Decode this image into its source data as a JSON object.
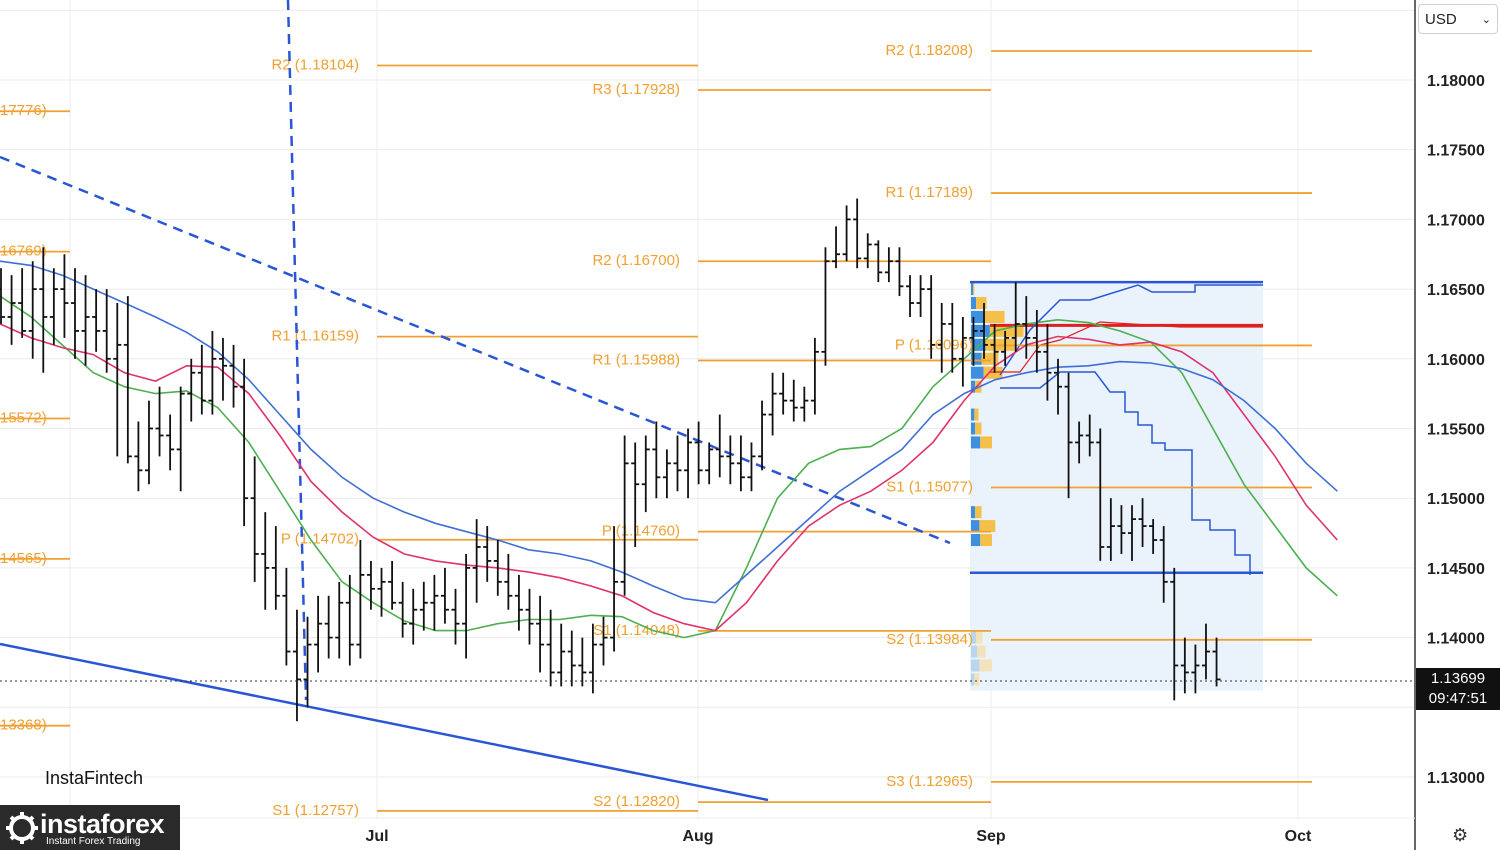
{
  "chart_data": {
    "type": "bar",
    "instrument_currency": "USD",
    "x_ticks": [
      "Jul",
      "Aug",
      "Sep",
      "Oct"
    ],
    "y_ticks": [
      "1.18000",
      "1.17500",
      "1.17000",
      "1.16500",
      "1.16000",
      "1.15500",
      "1.15000",
      "1.14500",
      "1.14000",
      "1.13000"
    ],
    "ylim": [
      1.1245,
      1.1858
    ],
    "current_price": "1.13699",
    "countdown": "09:47:51",
    "pivot_levels": [
      {
        "label": "R2 (1.18104)",
        "value": 1.18104,
        "period": "Jul"
      },
      {
        "label": "R1 (1.16159)",
        "value": 1.16159,
        "period": "Jul"
      },
      {
        "label": "P (1.14702)",
        "value": 1.14702,
        "period": "Jul"
      },
      {
        "label": "S1 (1.12757)",
        "value": 1.12757,
        "period": "Jul"
      },
      {
        "label": "R3 (1.17928)",
        "value": 1.17928,
        "period": "Aug"
      },
      {
        "label": "R2 (1.16700)",
        "value": 1.167,
        "period": "Aug"
      },
      {
        "label": "R1 (1.15988)",
        "value": 1.15988,
        "period": "Aug"
      },
      {
        "label": "P (1.14760)",
        "value": 1.1476,
        "period": "Aug"
      },
      {
        "label": "S1 (1.14048)",
        "value": 1.14048,
        "period": "Aug"
      },
      {
        "label": "S2 (1.12820)",
        "value": 1.1282,
        "period": "Aug"
      },
      {
        "label": "R2 (1.18208)",
        "value": 1.18208,
        "period": "Sep"
      },
      {
        "label": "R1 (1.17189)",
        "value": 1.17189,
        "period": "Sep"
      },
      {
        "label": "P (1.16096)",
        "value": 1.16096,
        "period": "Sep"
      },
      {
        "label": "S1 (1.15077)",
        "value": 1.15077,
        "period": "Sep"
      },
      {
        "label": "S2 (1.13984)",
        "value": 1.13984,
        "period": "Sep"
      },
      {
        "label": "S3 (1.12965)",
        "value": 1.12965,
        "period": "Sep"
      },
      {
        "label": "17776)",
        "value": 1.17776,
        "period": "Jun"
      },
      {
        "label": "16769)",
        "value": 1.16769,
        "period": "Jun"
      },
      {
        "label": "15572)",
        "value": 1.15572,
        "period": "Jun"
      },
      {
        "label": "14565)",
        "value": 1.14565,
        "period": "Jun"
      },
      {
        "label": "13368)",
        "value": 1.13368,
        "period": "Jun"
      }
    ],
    "ohlc": [
      {
        "o": 1.165,
        "h": 1.1665,
        "l": 1.1625,
        "c": 1.163
      },
      {
        "o": 1.163,
        "h": 1.166,
        "l": 1.161,
        "c": 1.164
      },
      {
        "o": 1.164,
        "h": 1.1665,
        "l": 1.1615,
        "c": 1.162
      },
      {
        "o": 1.162,
        "h": 1.167,
        "l": 1.16,
        "c": 1.165
      },
      {
        "o": 1.165,
        "h": 1.168,
        "l": 1.159,
        "c": 1.163
      },
      {
        "o": 1.163,
        "h": 1.1665,
        "l": 1.161,
        "c": 1.165
      },
      {
        "o": 1.165,
        "h": 1.1675,
        "l": 1.1615,
        "c": 1.164
      },
      {
        "o": 1.164,
        "h": 1.1665,
        "l": 1.16,
        "c": 1.162
      },
      {
        "o": 1.162,
        "h": 1.166,
        "l": 1.1595,
        "c": 1.163
      },
      {
        "o": 1.163,
        "h": 1.165,
        "l": 1.1605,
        "c": 1.162
      },
      {
        "o": 1.162,
        "h": 1.165,
        "l": 1.159,
        "c": 1.16
      },
      {
        "o": 1.16,
        "h": 1.164,
        "l": 1.153,
        "c": 1.161
      },
      {
        "o": 1.161,
        "h": 1.1645,
        "l": 1.1525,
        "c": 1.153
      },
      {
        "o": 1.153,
        "h": 1.1555,
        "l": 1.1505,
        "c": 1.152
      },
      {
        "o": 1.152,
        "h": 1.157,
        "l": 1.151,
        "c": 1.155
      },
      {
        "o": 1.155,
        "h": 1.158,
        "l": 1.153,
        "c": 1.1545
      },
      {
        "o": 1.1545,
        "h": 1.156,
        "l": 1.152,
        "c": 1.1535
      },
      {
        "o": 1.1535,
        "h": 1.158,
        "l": 1.1505,
        "c": 1.1575
      },
      {
        "o": 1.1575,
        "h": 1.16,
        "l": 1.1555,
        "c": 1.159
      },
      {
        "o": 1.159,
        "h": 1.161,
        "l": 1.156,
        "c": 1.157
      },
      {
        "o": 1.157,
        "h": 1.162,
        "l": 1.156,
        "c": 1.16
      },
      {
        "o": 1.16,
        "h": 1.1615,
        "l": 1.157,
        "c": 1.1595
      },
      {
        "o": 1.1595,
        "h": 1.161,
        "l": 1.1565,
        "c": 1.158
      },
      {
        "o": 1.158,
        "h": 1.16,
        "l": 1.148,
        "c": 1.15
      },
      {
        "o": 1.15,
        "h": 1.153,
        "l": 1.144,
        "c": 1.146
      },
      {
        "o": 1.146,
        "h": 1.149,
        "l": 1.142,
        "c": 1.145
      },
      {
        "o": 1.145,
        "h": 1.148,
        "l": 1.142,
        "c": 1.143
      },
      {
        "o": 1.143,
        "h": 1.145,
        "l": 1.138,
        "c": 1.139
      },
      {
        "o": 1.139,
        "h": 1.142,
        "l": 1.134,
        "c": 1.137
      },
      {
        "o": 1.137,
        "h": 1.1415,
        "l": 1.135,
        "c": 1.1395
      },
      {
        "o": 1.1395,
        "h": 1.143,
        "l": 1.1375,
        "c": 1.141
      },
      {
        "o": 1.141,
        "h": 1.143,
        "l": 1.1385,
        "c": 1.14
      },
      {
        "o": 1.14,
        "h": 1.144,
        "l": 1.1385,
        "c": 1.1425
      },
      {
        "o": 1.1425,
        "h": 1.1445,
        "l": 1.138,
        "c": 1.1395
      },
      {
        "o": 1.1395,
        "h": 1.147,
        "l": 1.1385,
        "c": 1.1445
      },
      {
        "o": 1.1445,
        "h": 1.1455,
        "l": 1.142,
        "c": 1.1435
      },
      {
        "o": 1.1435,
        "h": 1.145,
        "l": 1.1415,
        "c": 1.144
      },
      {
        "o": 1.144,
        "h": 1.1455,
        "l": 1.142,
        "c": 1.1425
      },
      {
        "o": 1.1425,
        "h": 1.144,
        "l": 1.14,
        "c": 1.141
      },
      {
        "o": 1.141,
        "h": 1.1435,
        "l": 1.1395,
        "c": 1.142
      },
      {
        "o": 1.142,
        "h": 1.144,
        "l": 1.1405,
        "c": 1.1425
      },
      {
        "o": 1.1425,
        "h": 1.1445,
        "l": 1.1405,
        "c": 1.143
      },
      {
        "o": 1.143,
        "h": 1.145,
        "l": 1.141,
        "c": 1.142
      },
      {
        "o": 1.142,
        "h": 1.1435,
        "l": 1.1395,
        "c": 1.141
      },
      {
        "o": 1.141,
        "h": 1.146,
        "l": 1.1385,
        "c": 1.145
      },
      {
        "o": 1.145,
        "h": 1.1485,
        "l": 1.1425,
        "c": 1.1465
      },
      {
        "o": 1.1465,
        "h": 1.148,
        "l": 1.144,
        "c": 1.1455
      },
      {
        "o": 1.1455,
        "h": 1.147,
        "l": 1.143,
        "c": 1.144
      },
      {
        "o": 1.144,
        "h": 1.146,
        "l": 1.142,
        "c": 1.143
      },
      {
        "o": 1.143,
        "h": 1.1445,
        "l": 1.1405,
        "c": 1.142
      },
      {
        "o": 1.142,
        "h": 1.1435,
        "l": 1.1395,
        "c": 1.141
      },
      {
        "o": 1.141,
        "h": 1.143,
        "l": 1.1375,
        "c": 1.1395
      },
      {
        "o": 1.1395,
        "h": 1.142,
        "l": 1.1365,
        "c": 1.1375
      },
      {
        "o": 1.1375,
        "h": 1.141,
        "l": 1.1365,
        "c": 1.139
      },
      {
        "o": 1.139,
        "h": 1.1405,
        "l": 1.1365,
        "c": 1.138
      },
      {
        "o": 1.138,
        "h": 1.14,
        "l": 1.1365,
        "c": 1.1375
      },
      {
        "o": 1.1375,
        "h": 1.141,
        "l": 1.136,
        "c": 1.1395
      },
      {
        "o": 1.1395,
        "h": 1.1415,
        "l": 1.138,
        "c": 1.14
      },
      {
        "o": 1.14,
        "h": 1.148,
        "l": 1.139,
        "c": 1.144
      },
      {
        "o": 1.144,
        "h": 1.1545,
        "l": 1.143,
        "c": 1.1525
      },
      {
        "o": 1.1525,
        "h": 1.154,
        "l": 1.1465,
        "c": 1.151
      },
      {
        "o": 1.151,
        "h": 1.1545,
        "l": 1.149,
        "c": 1.1535
      },
      {
        "o": 1.1535,
        "h": 1.1555,
        "l": 1.15,
        "c": 1.1515
      },
      {
        "o": 1.1515,
        "h": 1.1535,
        "l": 1.15,
        "c": 1.1525
      },
      {
        "o": 1.1525,
        "h": 1.1545,
        "l": 1.1505,
        "c": 1.152
      },
      {
        "o": 1.152,
        "h": 1.155,
        "l": 1.15,
        "c": 1.154
      },
      {
        "o": 1.154,
        "h": 1.1555,
        "l": 1.151,
        "c": 1.152
      },
      {
        "o": 1.152,
        "h": 1.154,
        "l": 1.151,
        "c": 1.1535
      },
      {
        "o": 1.1535,
        "h": 1.156,
        "l": 1.1515,
        "c": 1.153
      },
      {
        "o": 1.153,
        "h": 1.1545,
        "l": 1.151,
        "c": 1.1525
      },
      {
        "o": 1.1525,
        "h": 1.1545,
        "l": 1.1505,
        "c": 1.1515
      },
      {
        "o": 1.1515,
        "h": 1.154,
        "l": 1.1505,
        "c": 1.153
      },
      {
        "o": 1.153,
        "h": 1.157,
        "l": 1.152,
        "c": 1.156
      },
      {
        "o": 1.156,
        "h": 1.159,
        "l": 1.1545,
        "c": 1.1575
      },
      {
        "o": 1.1575,
        "h": 1.159,
        "l": 1.156,
        "c": 1.157
      },
      {
        "o": 1.157,
        "h": 1.1585,
        "l": 1.1555,
        "c": 1.1565
      },
      {
        "o": 1.1565,
        "h": 1.158,
        "l": 1.1555,
        "c": 1.157
      },
      {
        "o": 1.157,
        "h": 1.1615,
        "l": 1.156,
        "c": 1.1605
      },
      {
        "o": 1.1605,
        "h": 1.168,
        "l": 1.1595,
        "c": 1.167
      },
      {
        "o": 1.167,
        "h": 1.1695,
        "l": 1.1665,
        "c": 1.1675
      },
      {
        "o": 1.1675,
        "h": 1.171,
        "l": 1.167,
        "c": 1.17
      },
      {
        "o": 1.17,
        "h": 1.1715,
        "l": 1.1665,
        "c": 1.1672
      },
      {
        "o": 1.1672,
        "h": 1.169,
        "l": 1.1665,
        "c": 1.1682
      },
      {
        "o": 1.1682,
        "h": 1.1685,
        "l": 1.1655,
        "c": 1.1662
      },
      {
        "o": 1.1662,
        "h": 1.168,
        "l": 1.1655,
        "c": 1.167
      },
      {
        "o": 1.167,
        "h": 1.168,
        "l": 1.1645,
        "c": 1.1652
      },
      {
        "o": 1.1652,
        "h": 1.166,
        "l": 1.163,
        "c": 1.164
      },
      {
        "o": 1.164,
        "h": 1.166,
        "l": 1.163,
        "c": 1.165
      },
      {
        "o": 1.165,
        "h": 1.166,
        "l": 1.16,
        "c": 1.161
      },
      {
        "o": 1.161,
        "h": 1.164,
        "l": 1.159,
        "c": 1.1625
      },
      {
        "o": 1.1625,
        "h": 1.164,
        "l": 1.159,
        "c": 1.16
      },
      {
        "o": 1.16,
        "h": 1.163,
        "l": 1.158,
        "c": 1.1615
      },
      {
        "o": 1.1615,
        "h": 1.163,
        "l": 1.1595,
        "c": 1.162
      },
      {
        "o": 1.162,
        "h": 1.164,
        "l": 1.16,
        "c": 1.161
      },
      {
        "o": 1.161,
        "h": 1.1625,
        "l": 1.159,
        "c": 1.1605
      },
      {
        "o": 1.1605,
        "h": 1.162,
        "l": 1.1595,
        "c": 1.1615
      },
      {
        "o": 1.1615,
        "h": 1.1655,
        "l": 1.1605,
        "c": 1.1625
      },
      {
        "o": 1.1625,
        "h": 1.1645,
        "l": 1.16,
        "c": 1.1615
      },
      {
        "o": 1.1615,
        "h": 1.1635,
        "l": 1.159,
        "c": 1.1605
      },
      {
        "o": 1.1605,
        "h": 1.1625,
        "l": 1.157,
        "c": 1.159
      },
      {
        "o": 1.159,
        "h": 1.16,
        "l": 1.156,
        "c": 1.158
      },
      {
        "o": 1.158,
        "h": 1.159,
        "l": 1.15,
        "c": 1.154
      },
      {
        "o": 1.154,
        "h": 1.1555,
        "l": 1.1525,
        "c": 1.1545
      },
      {
        "o": 1.1545,
        "h": 1.156,
        "l": 1.153,
        "c": 1.154
      },
      {
        "o": 1.154,
        "h": 1.155,
        "l": 1.1455,
        "c": 1.1465
      },
      {
        "o": 1.1465,
        "h": 1.15,
        "l": 1.1455,
        "c": 1.148
      },
      {
        "o": 1.148,
        "h": 1.1495,
        "l": 1.146,
        "c": 1.1475
      },
      {
        "o": 1.1475,
        "h": 1.1495,
        "l": 1.1455,
        "c": 1.1485
      },
      {
        "o": 1.1485,
        "h": 1.15,
        "l": 1.1465,
        "c": 1.148
      },
      {
        "o": 1.148,
        "h": 1.1485,
        "l": 1.146,
        "c": 1.147
      },
      {
        "o": 1.147,
        "h": 1.148,
        "l": 1.1425,
        "c": 1.144
      },
      {
        "o": 1.144,
        "h": 1.145,
        "l": 1.1355,
        "c": 1.138
      },
      {
        "o": 1.138,
        "h": 1.14,
        "l": 1.136,
        "c": 1.1375
      },
      {
        "o": 1.1375,
        "h": 1.1395,
        "l": 1.136,
        "c": 1.138
      },
      {
        "o": 1.138,
        "h": 1.141,
        "l": 1.137,
        "c": 1.139
      },
      {
        "o": 1.139,
        "h": 1.14,
        "l": 1.1365,
        "c": 1.137
      }
    ],
    "moving_averages": [
      {
        "color": "#4CAF50",
        "values": [
          1.1645,
          1.163,
          1.161,
          1.159,
          1.158,
          1.1575,
          1.1577,
          1.1565,
          1.154,
          1.1505,
          1.147,
          1.144,
          1.1425,
          1.1412,
          1.1405,
          1.1405,
          1.141,
          1.1413,
          1.1413,
          1.1416,
          1.1415,
          1.1405,
          1.14,
          1.1405,
          1.145,
          1.15,
          1.1525,
          1.1535,
          1.1537,
          1.155,
          1.158,
          1.16,
          1.162,
          1.1625,
          1.1628,
          1.1626,
          1.162,
          1.1612,
          1.159,
          1.155,
          1.151,
          1.148,
          1.145,
          1.143
        ]
      },
      {
        "color": "#E0336B",
        "values": [
          1.1625,
          1.1615,
          1.1608,
          1.1603,
          1.159,
          1.1584,
          1.1595,
          1.1594,
          1.1575,
          1.1545,
          1.1512,
          1.149,
          1.1472,
          1.146,
          1.1455,
          1.1452,
          1.145,
          1.1447,
          1.1443,
          1.1437,
          1.143,
          1.1418,
          1.141,
          1.1405,
          1.1425,
          1.1455,
          1.148,
          1.1495,
          1.1505,
          1.152,
          1.154,
          1.157,
          1.1595,
          1.161,
          1.1616,
          1.1614,
          1.161,
          1.1612,
          1.1605,
          1.159,
          1.156,
          1.153,
          1.1495,
          1.147
        ]
      },
      {
        "color": "#3F6FD6",
        "values": [
          1.167,
          1.1667,
          1.166,
          1.165,
          1.164,
          1.163,
          1.1619,
          1.1605,
          1.1585,
          1.156,
          1.1535,
          1.1515,
          1.15,
          1.149,
          1.1482,
          1.1476,
          1.147,
          1.1463,
          1.146,
          1.1455,
          1.1447,
          1.1437,
          1.1428,
          1.1425,
          1.1445,
          1.1465,
          1.1485,
          1.1505,
          1.152,
          1.1535,
          1.156,
          1.1575,
          1.1585,
          1.159,
          1.1594,
          1.1595,
          1.1598,
          1.1597,
          1.1593,
          1.1585,
          1.157,
          1.155,
          1.1525,
          1.1505
        ]
      }
    ],
    "volume_profile": {
      "range_high": 1.1655,
      "range_low": 1.1362,
      "bins": [
        {
          "price": 1.165,
          "buy": 5,
          "sell": 3
        },
        {
          "price": 1.164,
          "buy": 12,
          "sell": 25
        },
        {
          "price": 1.163,
          "buy": 30,
          "sell": 50
        },
        {
          "price": 1.162,
          "buy": 45,
          "sell": 80
        },
        {
          "price": 1.161,
          "buy": 35,
          "sell": 70
        },
        {
          "price": 1.16,
          "buy": 25,
          "sell": 40
        },
        {
          "price": 1.159,
          "buy": 30,
          "sell": 45
        },
        {
          "price": 1.158,
          "buy": 10,
          "sell": 15
        },
        {
          "price": 1.156,
          "buy": 8,
          "sell": 10
        },
        {
          "price": 1.155,
          "buy": 10,
          "sell": 15
        },
        {
          "price": 1.154,
          "buy": 22,
          "sell": 28
        },
        {
          "price": 1.149,
          "buy": 10,
          "sell": 15
        },
        {
          "price": 1.148,
          "buy": 20,
          "sell": 38
        },
        {
          "price": 1.147,
          "buy": 22,
          "sell": 28
        },
        {
          "price": 1.14,
          "buy": 12,
          "sell": 15
        },
        {
          "price": 1.139,
          "buy": 15,
          "sell": 20
        },
        {
          "price": 1.138,
          "buy": 20,
          "sell": 30
        },
        {
          "price": 1.137,
          "buy": 8,
          "sell": 12
        }
      ]
    }
  },
  "ui": {
    "currency_label": "USD",
    "currency_chevron": "chevron-down-icon",
    "brand_text": "InstaFintech",
    "logo_title": "instaforex",
    "logo_subtitle": "Instant Forex Trading",
    "settings_icon": "gear-icon"
  },
  "colors": {
    "pivot": "#f0a030",
    "trend": "#2a56d6",
    "ema_fast": "#4CAF50",
    "ema_mid": "#E0336B",
    "ema_slow": "#3F6FD6",
    "poc": "#e02020"
  }
}
